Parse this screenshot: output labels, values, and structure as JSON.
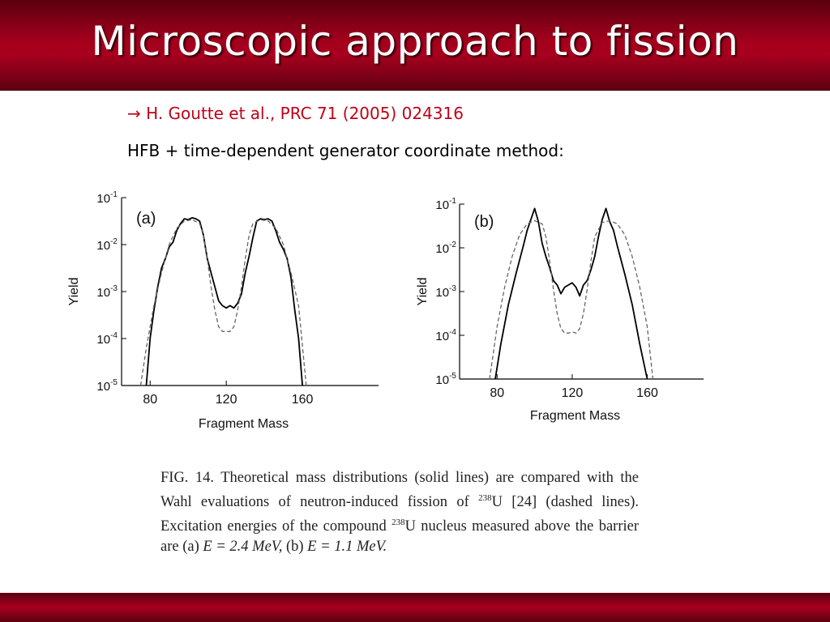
{
  "slide": {
    "title": "Microscopic approach to fission",
    "arrow": "→",
    "reference": "H. Goutte et al., PRC 71 (2005) 024316",
    "method": "HFB + time-dependent generator coordinate method:"
  },
  "caption": {
    "fig": "FIG. 14.",
    "text_1": "Theoretical mass distributions (solid lines) are compared with the Wahl evaluations of neutron-induced fission of",
    "iso_mass": "238",
    "iso_elem": "U",
    "text_2": "[24] (dashed lines). Excitation energies of the compound",
    "text_3": "nucleus measured above the barrier are (a)",
    "e_a": "E = 2.4 MeV,",
    "b_label": "(b)",
    "e_b": "E = 1.1 MeV."
  },
  "colors": {
    "accent": "#a8001e",
    "reference_text": "#c00018"
  },
  "chart_data": [
    {
      "type": "line",
      "panel_label": "(a)",
      "xlabel": "Fragment Mass",
      "ylabel": "Yield",
      "xticks": [
        "80",
        "120",
        "160"
      ],
      "yticks": [
        {
          "base": "10",
          "exp": "-1"
        },
        {
          "base": "10",
          "exp": "-2"
        },
        {
          "base": "10",
          "exp": "-3"
        },
        {
          "base": "10",
          "exp": "-4"
        },
        {
          "base": "10",
          "exp": "-5"
        }
      ],
      "xlim": [
        65,
        200
      ],
      "ylim_log10": [
        -5,
        -1
      ],
      "series": [
        {
          "style": "solid",
          "x": [
            78,
            80,
            82,
            84,
            86,
            88,
            90,
            92,
            94,
            96,
            98,
            100,
            102,
            104,
            106,
            108,
            110,
            112,
            114,
            116,
            118,
            120,
            122,
            124,
            126,
            128,
            130,
            132,
            134,
            136,
            138,
            140,
            142,
            144,
            146,
            148,
            150,
            152,
            154,
            156,
            158,
            160
          ],
          "log10_y": [
            -5.0,
            -4.0,
            -3.4,
            -2.9,
            -2.5,
            -2.3,
            -2.05,
            -1.95,
            -1.7,
            -1.55,
            -1.45,
            -1.47,
            -1.43,
            -1.45,
            -1.5,
            -1.8,
            -2.3,
            -2.6,
            -2.9,
            -3.2,
            -3.3,
            -3.35,
            -3.3,
            -3.35,
            -3.25,
            -3.05,
            -2.6,
            -2.25,
            -1.85,
            -1.5,
            -1.45,
            -1.47,
            -1.45,
            -1.5,
            -1.7,
            -1.95,
            -2.1,
            -2.3,
            -2.7,
            -3.4,
            -4.0,
            -5.0
          ]
        },
        {
          "style": "dashed",
          "x": [
            75,
            78,
            82,
            86,
            90,
            94,
            98,
            102,
            106,
            108,
            110,
            112,
            114,
            116,
            118,
            120,
            122,
            124,
            126,
            128,
            130,
            132,
            134,
            138,
            142,
            146,
            150,
            154,
            158,
            162
          ],
          "log10_y": [
            -5.0,
            -4.2,
            -3.3,
            -2.6,
            -2.0,
            -1.65,
            -1.5,
            -1.47,
            -1.55,
            -1.8,
            -2.3,
            -2.9,
            -3.4,
            -3.75,
            -3.85,
            -3.85,
            -3.85,
            -3.75,
            -3.4,
            -2.9,
            -2.3,
            -1.8,
            -1.55,
            -1.47,
            -1.5,
            -1.65,
            -2.0,
            -2.6,
            -3.3,
            -5.0
          ]
        }
      ]
    },
    {
      "type": "line",
      "panel_label": "(b)",
      "xlabel": "Fragment Mass",
      "ylabel": "Yield",
      "xticks": [
        "80",
        "120",
        "160"
      ],
      "yticks": [
        {
          "base": "10",
          "exp": "-1"
        },
        {
          "base": "10",
          "exp": "-2"
        },
        {
          "base": "10",
          "exp": "-3"
        },
        {
          "base": "10",
          "exp": "-4"
        },
        {
          "base": "10",
          "exp": "-5"
        }
      ],
      "xlim": [
        60,
        190
      ],
      "ylim_log10": [
        -5,
        -1
      ],
      "series": [
        {
          "style": "solid",
          "x": [
            79,
            82,
            86,
            90,
            94,
            96,
            98,
            100,
            102,
            104,
            106,
            108,
            110,
            112,
            114,
            116,
            118,
            120,
            122,
            124,
            126,
            128,
            130,
            132,
            134,
            136,
            138,
            140,
            142,
            144,
            148,
            152,
            156,
            160
          ],
          "log10_y": [
            -5.0,
            -4.2,
            -3.3,
            -2.6,
            -1.95,
            -1.6,
            -1.35,
            -1.1,
            -1.4,
            -1.9,
            -2.2,
            -2.45,
            -2.75,
            -2.85,
            -3.05,
            -2.9,
            -2.85,
            -2.8,
            -2.9,
            -3.1,
            -2.85,
            -2.75,
            -2.5,
            -2.2,
            -1.75,
            -1.35,
            -1.1,
            -1.4,
            -1.6,
            -1.95,
            -2.6,
            -3.3,
            -4.2,
            -5.0
          ]
        },
        {
          "style": "dashed",
          "x": [
            76,
            80,
            84,
            88,
            92,
            96,
            100,
            104,
            106,
            108,
            110,
            112,
            114,
            116,
            118,
            120,
            122,
            124,
            126,
            128,
            130,
            132,
            136,
            140,
            144,
            148,
            152,
            156,
            160,
            163
          ],
          "log10_y": [
            -5.0,
            -3.8,
            -2.9,
            -2.2,
            -1.7,
            -1.45,
            -1.38,
            -1.45,
            -1.75,
            -2.3,
            -2.95,
            -3.5,
            -3.85,
            -3.95,
            -3.95,
            -3.92,
            -3.95,
            -3.85,
            -3.5,
            -2.95,
            -2.3,
            -1.75,
            -1.42,
            -1.38,
            -1.45,
            -1.7,
            -2.2,
            -2.9,
            -3.8,
            -5.0
          ]
        }
      ]
    }
  ]
}
